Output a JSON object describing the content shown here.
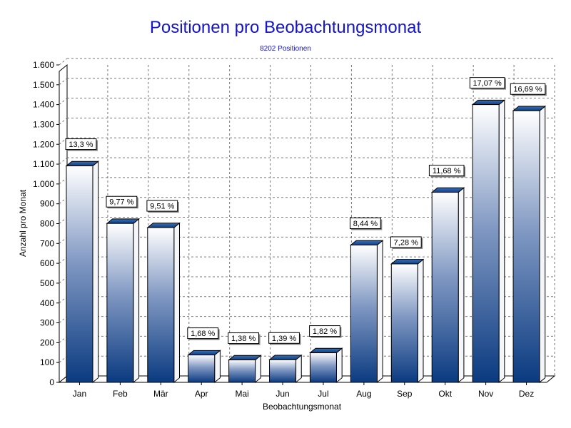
{
  "chart_data": {
    "type": "bar",
    "title": "Positionen pro Beobachtungsmonat",
    "subtitle": "8202 Positionen",
    "xlabel": "Beobachtungsmonat",
    "ylabel": "Anzahl pro Monat",
    "ylim": [
      0,
      1600
    ],
    "yticks": [
      {
        "value": 0,
        "label": "0"
      },
      {
        "value": 100,
        "label": "100"
      },
      {
        "value": 200,
        "label": "200"
      },
      {
        "value": 300,
        "label": "300"
      },
      {
        "value": 400,
        "label": "400"
      },
      {
        "value": 500,
        "label": "500"
      },
      {
        "value": 600,
        "label": "600"
      },
      {
        "value": 700,
        "label": "700"
      },
      {
        "value": 800,
        "label": "800"
      },
      {
        "value": 900,
        "label": "900"
      },
      {
        "value": 1000,
        "label": "1.000"
      },
      {
        "value": 1100,
        "label": "1.100"
      },
      {
        "value": 1200,
        "label": "1.200"
      },
      {
        "value": 1300,
        "label": "1.300"
      },
      {
        "value": 1400,
        "label": "1.400"
      },
      {
        "value": 1500,
        "label": "1.500"
      },
      {
        "value": 1600,
        "label": "1.600"
      }
    ],
    "categories": [
      "Jan",
      "Feb",
      "Mär",
      "Apr",
      "Mai",
      "Jun",
      "Jul",
      "Aug",
      "Sep",
      "Okt",
      "Nov",
      "Dez"
    ],
    "values": [
      1091,
      801,
      780,
      138,
      113,
      114,
      149,
      692,
      597,
      958,
      1400,
      1369
    ],
    "data_labels": [
      "13,3 %",
      "9,77 %",
      "9,51 %",
      "1,68 %",
      "1,38 %",
      "1,39 %",
      "1,82 %",
      "8,44 %",
      "7,28 %",
      "11,68 %",
      "17,07 %",
      "16,69 %"
    ],
    "grid": true,
    "legend": "none",
    "colors": {
      "bar_top": "#ffffff",
      "bar_bottom": "#0a3a80",
      "bar_cap": "#0b3f86",
      "bar_side": "#f4f6fa",
      "title": "#1414c8"
    }
  }
}
